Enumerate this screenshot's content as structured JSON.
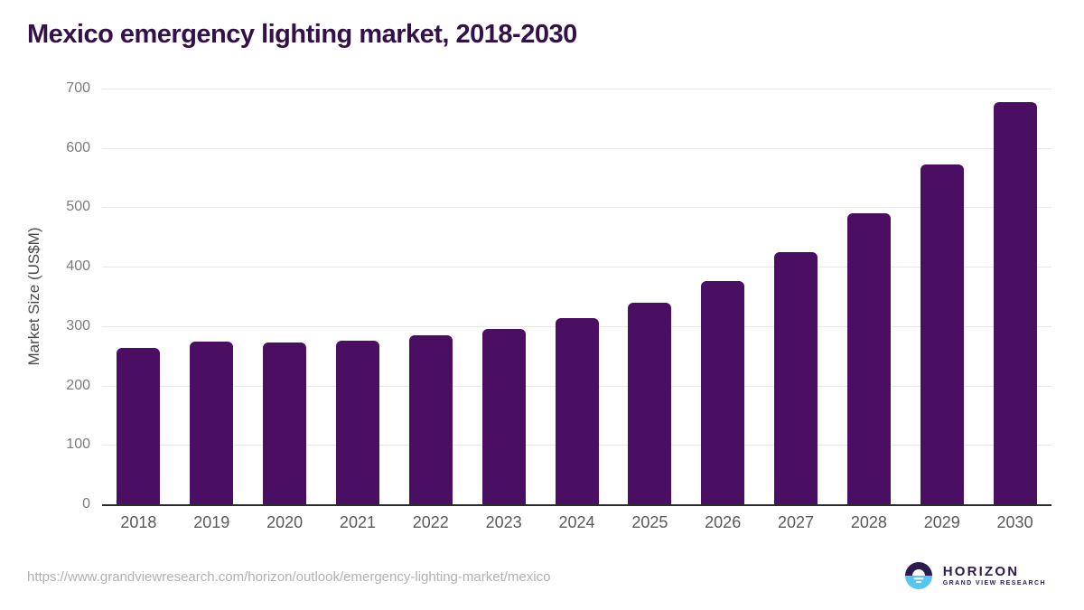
{
  "header": {
    "title": "Mexico emergency lighting market, 2018-2030"
  },
  "chart_data": {
    "type": "bar",
    "title": "Mexico emergency lighting market, 2018-2030",
    "categories": [
      "2018",
      "2019",
      "2020",
      "2021",
      "2022",
      "2023",
      "2024",
      "2025",
      "2026",
      "2027",
      "2028",
      "2029",
      "2030"
    ],
    "values": [
      264,
      274,
      272,
      276,
      285,
      296,
      314,
      340,
      376,
      424,
      490,
      572,
      677
    ],
    "xlabel": "",
    "ylabel": "Market Size (US$M)",
    "ylim": [
      0,
      700
    ],
    "yticks": [
      0,
      100,
      200,
      300,
      400,
      500,
      600,
      700
    ],
    "grid": true,
    "legend": "none",
    "bar_color": "#4a0f62"
  },
  "footer": {
    "source_url": "https://www.grandviewresearch.com/horizon/outlook/emergency-lighting-market/mexico",
    "logo": {
      "name": "HORIZON",
      "tagline": "GRAND VIEW RESEARCH",
      "icon": "sun-over-horizon-icon"
    }
  },
  "colors": {
    "bar": "#4a0f62",
    "title": "#33104a",
    "logo_purple": "#2d1b4e",
    "logo_blue": "#56c5f2",
    "gridline": "#e8e8e8",
    "axis_line": "#2b2b2b",
    "tick_label": "#595959"
  }
}
